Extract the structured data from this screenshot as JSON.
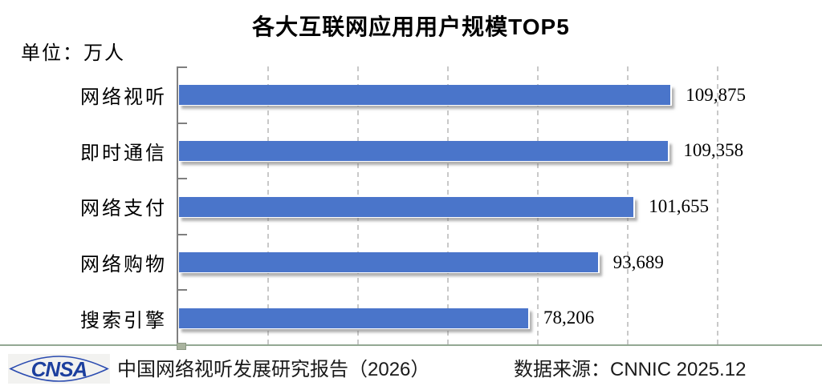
{
  "chart_data": {
    "type": "bar",
    "orientation": "horizontal",
    "title": "各大互联网应用用户规模TOP5",
    "unit": "单位：万人",
    "categories": [
      "网络视听",
      "即时通信",
      "网络支付",
      "网络购物",
      "搜索引擎"
    ],
    "values": [
      109875,
      109358,
      101655,
      93689,
      78206
    ],
    "value_labels": [
      "109,875",
      "109,358",
      "101,655",
      "93,689",
      "78,206"
    ],
    "xlim": [
      0,
      120000
    ],
    "grid_step": 20000,
    "grid": "vertical-dashed",
    "legend": "none",
    "bar_color": "#4a75ca"
  },
  "footer": {
    "logo_text": "CNSA",
    "report_label": "中国网络视听发展研究报告（2026）",
    "source_label": "数据来源：CNNIC 2025.12"
  },
  "colors": {
    "bar": "#4a75ca",
    "axis": "#7f7f7f",
    "gridline": "#c9c9c9",
    "footer_line": "#93a893",
    "logo_blue": "#1c3f9e",
    "logo_bg": "#f2f2f0"
  }
}
